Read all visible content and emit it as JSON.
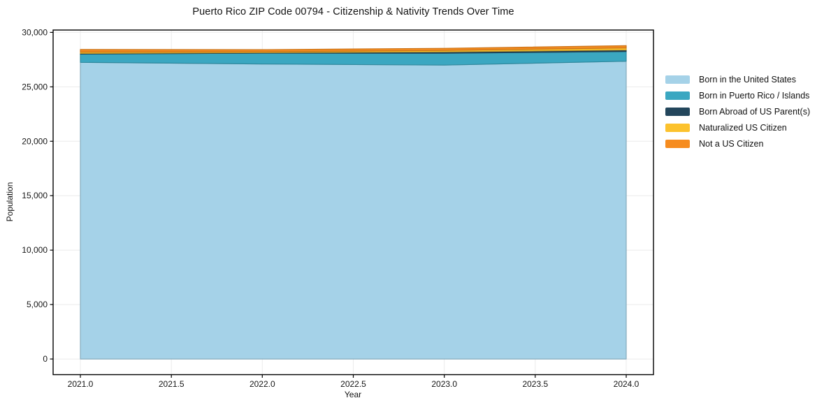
{
  "figure": {
    "background": "#ffffff"
  },
  "chart_data": {
    "type": "area",
    "stacked": true,
    "title": "Puerto Rico ZIP Code 00794 - Citizenship & Nativity Trends Over Time",
    "xlabel": "Year",
    "ylabel": "Population",
    "x": [
      2021,
      2022,
      2023,
      2024
    ],
    "series": [
      {
        "name": "Born in the United States",
        "color": "#a5d2e8",
        "values": [
          27250,
          27100,
          27000,
          27350
        ]
      },
      {
        "name": "Born in Puerto Rico / Islands",
        "color": "#3ba7c1",
        "values": [
          760,
          1000,
          1090,
          900
        ]
      },
      {
        "name": "Born Abroad of US Parent(s)",
        "color": "#23465c",
        "values": [
          70,
          50,
          130,
          140
        ]
      },
      {
        "name": "Naturalized US Citizen",
        "color": "#fcc22d",
        "values": [
          120,
          70,
          130,
          190
        ]
      },
      {
        "name": "Not a US Citizen",
        "color": "#f68c1f",
        "values": [
          230,
          200,
          190,
          200
        ]
      }
    ],
    "totals": [
      28430,
      28420,
      28540,
      28780
    ],
    "xlim": [
      2020.85,
      2024.15
    ],
    "ylim": [
      -1440,
      30220
    ],
    "x_ticks": [
      {
        "v": 2021.0,
        "label": "2021.0"
      },
      {
        "v": 2021.5,
        "label": "2021.5"
      },
      {
        "v": 2022.0,
        "label": "2022.0"
      },
      {
        "v": 2022.5,
        "label": "2022.5"
      },
      {
        "v": 2023.0,
        "label": "2023.0"
      },
      {
        "v": 2023.5,
        "label": "2023.5"
      },
      {
        "v": 2024.0,
        "label": "2024.0"
      }
    ],
    "y_ticks": [
      {
        "v": 0,
        "label": "0"
      },
      {
        "v": 5000,
        "label": "5,000"
      },
      {
        "v": 10000,
        "label": "10,000"
      },
      {
        "v": 15000,
        "label": "15,000"
      },
      {
        "v": 20000,
        "label": "20,000"
      },
      {
        "v": 25000,
        "label": "25,000"
      },
      {
        "v": 30000,
        "label": "30,000"
      }
    ],
    "grid": true,
    "grid_color": "#ebebeb",
    "legend_position": "right-outside"
  }
}
